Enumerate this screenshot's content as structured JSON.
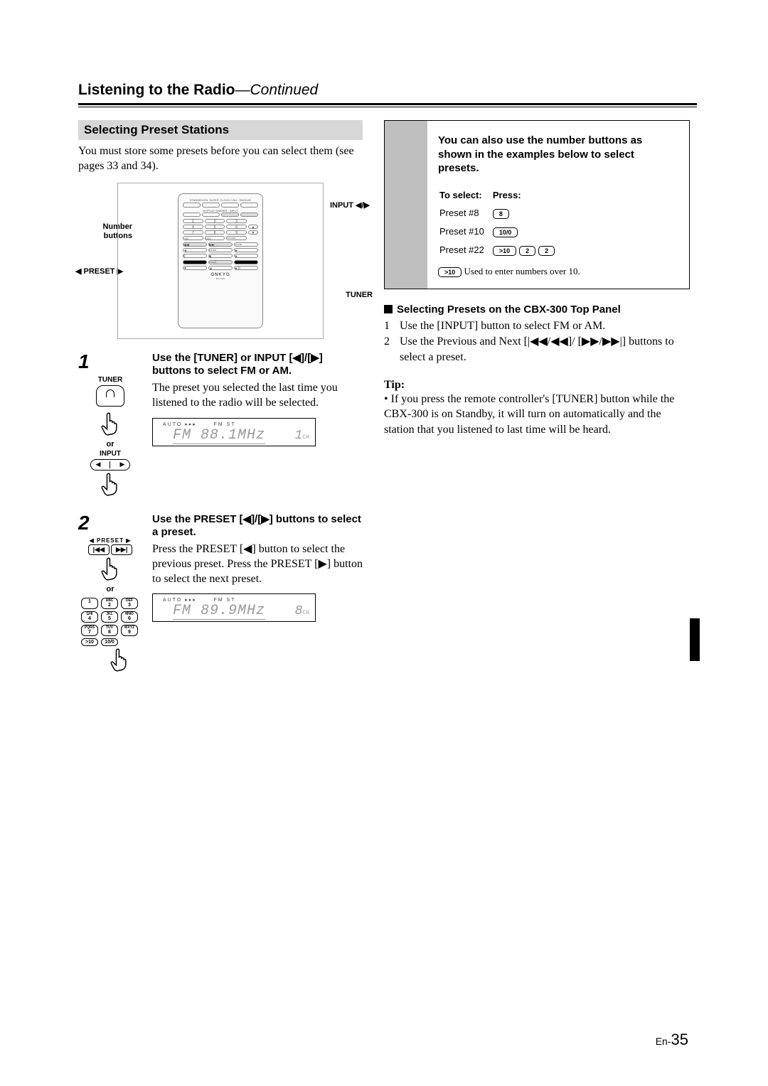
{
  "page": {
    "title_bold": "Listening to the Radio",
    "title_cont": "—Continued",
    "page_label_prefix": "En-",
    "page_number": "35"
  },
  "left": {
    "heading": "Selecting Preset Stations",
    "intro": "You must store some presets before you can select them (see pages 33 and 34).",
    "callouts": {
      "number_buttons": "Number buttons",
      "input_arrows": "INPUT ◀/▶",
      "preset_arrows": "◀ PRESET ▶",
      "tuner": "TUNER"
    },
    "step1": {
      "num": "1",
      "tuner_label": "TUNER",
      "or_label": "or",
      "input_label": "INPUT",
      "head": "Use the [TUNER] or INPUT [◀]/[▶] buttons to select FM or AM.",
      "body": "The preset you selected the last time you listened to the radio will be selected.",
      "lcd_top_a": "AUTO ▸▸▸",
      "lcd_top_b": "FM ST",
      "lcd_main": "FM  88.1MHz",
      "lcd_ch": "1",
      "lcd_ch_sub": "CH"
    },
    "step2": {
      "num": "2",
      "preset_label": "◀ PRESET ▶",
      "or_label": "or",
      "head": "Use the PRESET [◀]/[▶] buttons to select a preset.",
      "body": "Press the PRESET [◀] button to select the previous preset. Press the PRESET [▶] button to select the next preset.",
      "lcd_top_a": "AUTO ▸▸▸",
      "lcd_top_b": "FM ST",
      "lcd_main": "FM  89.9MHz",
      "lcd_ch": "8",
      "lcd_ch_sub": "CH",
      "numpad": {
        "keys": [
          {
            "sup": " ",
            "n": "1"
          },
          {
            "sup": "ABC",
            "n": "2"
          },
          {
            "sup": "DEF",
            "n": "3"
          },
          {
            "sup": "GHI",
            "n": "4"
          },
          {
            "sup": "JKL",
            "n": "5"
          },
          {
            "sup": "MNO",
            "n": "6"
          },
          {
            "sup": "PQRS",
            "n": "7"
          },
          {
            "sup": "TUV",
            "n": "8"
          },
          {
            "sup": "WXYZ",
            "n": "9"
          },
          {
            "sup": " ",
            "n": ">10"
          },
          {
            "sup": " ",
            "n": "10/0"
          }
        ]
      }
    }
  },
  "right": {
    "box_head": "You can also use the number buttons as shown in the examples below to select presets.",
    "table": {
      "hdr_select": "To select:",
      "hdr_press": "Press:",
      "rows": [
        {
          "label": "Preset #8",
          "keys": [
            "8"
          ]
        },
        {
          "label": "Preset #10",
          "keys": [
            "10/0"
          ]
        },
        {
          "label": "Preset #22",
          "keys": [
            ">10",
            "2",
            "2"
          ]
        }
      ],
      "note_key": ">10",
      "note_text": "Used to enter numbers over 10."
    },
    "panel_head": "Selecting Presets on the CBX-300 Top Panel",
    "panel_list": [
      "Use the [INPUT] button to select FM or AM.",
      "Use the Previous and Next [|◀◀/◀◀]/ [▶▶/▶▶|] buttons to select a preset."
    ],
    "tip_label": "Tip:",
    "tip_text": "If you press the remote controller's [TUNER] button while the CBX-300 is on Standby, it will turn on automatically and the station that you listened to last time will be heard."
  }
}
